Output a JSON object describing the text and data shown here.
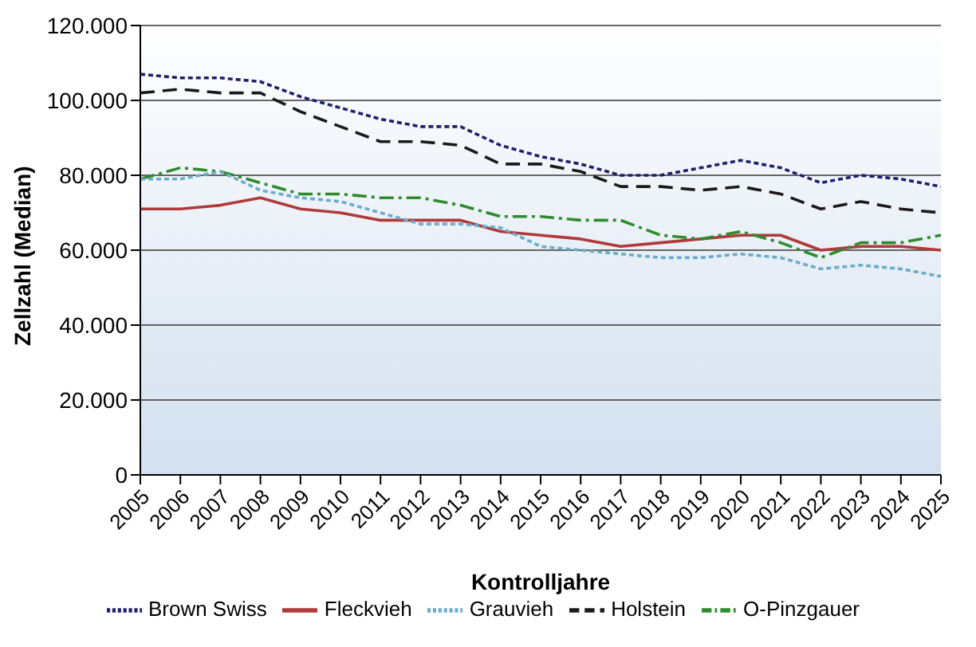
{
  "chart_data": {
    "type": "line",
    "xlabel": "Kontrolljahre",
    "ylabel": "Zellzahl (Median)",
    "categories": [
      "2005",
      "2006",
      "2007",
      "2008",
      "2009",
      "2010",
      "2011",
      "2012",
      "2013",
      "2014",
      "2015",
      "2016",
      "2017",
      "2018",
      "2019",
      "2020",
      "2021",
      "2022",
      "2023",
      "2024",
      "2025"
    ],
    "ylim": [
      0,
      120000
    ],
    "yticks": [
      {
        "value": 0,
        "label": "0"
      },
      {
        "value": 20000,
        "label": "20.000"
      },
      {
        "value": 40000,
        "label": "40.000"
      },
      {
        "value": 60000,
        "label": "60.000"
      },
      {
        "value": 80000,
        "label": "80.000"
      },
      {
        "value": 100000,
        "label": "100.000"
      },
      {
        "value": 120000,
        "label": "120.000"
      }
    ],
    "grid": "y",
    "legend": "bottom",
    "marker": "none",
    "series": [
      {
        "name": "Fleckvieh",
        "color": "#b03a3a",
        "line_style": "solid",
        "values": [
          71000,
          71000,
          72000,
          74000,
          71000,
          70000,
          68000,
          68000,
          68000,
          65000,
          64000,
          63000,
          61000,
          62000,
          63000,
          64000,
          64000,
          60000,
          61000,
          61000,
          60000
        ]
      },
      {
        "name": "Brown Swiss",
        "color": "#1f1f6e",
        "line_style": "dotted",
        "values": [
          107000,
          106000,
          106000,
          105000,
          101000,
          98000,
          95000,
          93000,
          93000,
          88000,
          85000,
          83000,
          80000,
          80000,
          82000,
          84000,
          82000,
          78000,
          80000,
          79000,
          77000
        ]
      },
      {
        "name": "Holstein",
        "color": "#1a1a1a",
        "line_style": "dashed",
        "values": [
          102000,
          103000,
          102000,
          102000,
          97000,
          93000,
          89000,
          89000,
          88000,
          83000,
          83000,
          81000,
          77000,
          77000,
          76000,
          77000,
          75000,
          71000,
          73000,
          71000,
          70000
        ]
      },
      {
        "name": "O-Pinzgauer",
        "color": "#2e8b2e",
        "line_style": "dashdot",
        "values": [
          79000,
          82000,
          81000,
          78000,
          75000,
          75000,
          74000,
          74000,
          72000,
          69000,
          69000,
          68000,
          68000,
          64000,
          63000,
          65000,
          62000,
          58000,
          62000,
          62000,
          64000
        ]
      },
      {
        "name": "Grauvieh",
        "color": "#6aaccc",
        "line_style": "dotted",
        "values": [
          79000,
          79000,
          81000,
          76000,
          74000,
          73000,
          70000,
          67000,
          67000,
          66000,
          61000,
          60000,
          59000,
          58000,
          58000,
          59000,
          58000,
          55000,
          56000,
          55000,
          53000
        ]
      }
    ]
  }
}
